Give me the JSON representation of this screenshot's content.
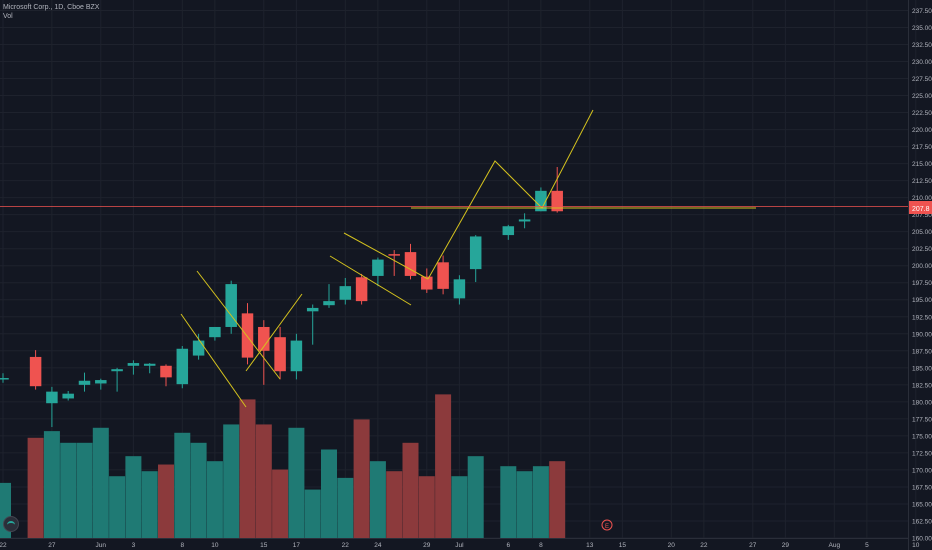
{
  "legend": {
    "title": "Microsoft Corp., 1D, Cboe BZX",
    "vol_label": "Vol"
  },
  "colors": {
    "up": "#26a69a",
    "down": "#ef5350",
    "vol_up": "#1f7a74",
    "vol_down": "#8c3a3c",
    "grid": "#1e222d",
    "drawing": "#d4c21e",
    "price_line": "#ef5350",
    "bg": "#131722"
  },
  "icons": {
    "logo": "tradingview-logo-icon",
    "event": "earnings-marker-icon"
  },
  "event_marker": {
    "label": "E"
  },
  "chart_data": {
    "type": "candlestick",
    "title": "Microsoft Corp., 1D, Cboe BZX",
    "current_price": 207.8,
    "price_label": "207.8",
    "y_ticks": [
      "237.50",
      "235.00",
      "232.50",
      "230.00",
      "227.50",
      "225.00",
      "222.50",
      "220.00",
      "217.50",
      "215.00",
      "212.50",
      "210.00",
      "207.50",
      "205.00",
      "202.50",
      "200.00",
      "197.50",
      "195.00",
      "192.50",
      "190.00",
      "187.50",
      "185.00",
      "182.50",
      "180.00",
      "177.50",
      "175.00",
      "172.50",
      "170.00",
      "167.50",
      "165.00",
      "162.50",
      "160.00"
    ],
    "y_tick_values": [
      237.5,
      235,
      232.5,
      230,
      227.5,
      225,
      222.5,
      220,
      217.5,
      215,
      212.5,
      210,
      207.5,
      205,
      202.5,
      200,
      197.5,
      195,
      192.5,
      190,
      187.5,
      185,
      182.5,
      180,
      177.5,
      175,
      172.5,
      170,
      167.5,
      165,
      162.5,
      160
    ],
    "ylim": [
      160,
      238.3
    ],
    "x_ticks": [
      {
        "label": "22",
        "date": "2020-05-22"
      },
      {
        "label": "27",
        "date": "2020-05-27"
      },
      {
        "label": "Jun",
        "date": "2020-06-01"
      },
      {
        "label": "3",
        "date": "2020-06-03"
      },
      {
        "label": "8",
        "date": "2020-06-08"
      },
      {
        "label": "10",
        "date": "2020-06-10"
      },
      {
        "label": "15",
        "date": "2020-06-15"
      },
      {
        "label": "17",
        "date": "2020-06-17"
      },
      {
        "label": "22",
        "date": "2020-06-22"
      },
      {
        "label": "24",
        "date": "2020-06-24"
      },
      {
        "label": "29",
        "date": "2020-06-29"
      },
      {
        "label": "Jul",
        "date": "2020-07-01"
      },
      {
        "label": "6",
        "date": "2020-07-06"
      },
      {
        "label": "8",
        "date": "2020-07-08"
      },
      {
        "label": "13",
        "date": "2020-07-13"
      },
      {
        "label": "15",
        "date": "2020-07-15"
      },
      {
        "label": "20",
        "date": "2020-07-20"
      },
      {
        "label": "22",
        "date": "2020-07-22"
      },
      {
        "label": "27",
        "date": "2020-07-27"
      },
      {
        "label": "29",
        "date": "2020-07-29"
      },
      {
        "label": "Aug",
        "date": "2020-08-03"
      },
      {
        "label": "5",
        "date": "2020-08-05"
      },
      {
        "label": "10",
        "date": "2020-08-10"
      }
    ],
    "candles": [
      {
        "date": "2020-05-22",
        "open": 183.5,
        "high": 184.2,
        "low": 182.8,
        "close": 183.5,
        "vol": 0.33
      },
      {
        "date": "2020-05-26",
        "open": 186.6,
        "high": 187.6,
        "low": 181.8,
        "close": 182.3,
        "vol": 0.6
      },
      {
        "date": "2020-05-27",
        "open": 179.8,
        "high": 182.2,
        "low": 176.3,
        "close": 181.5,
        "vol": 0.64
      },
      {
        "date": "2020-05-28",
        "open": 180.5,
        "high": 181.6,
        "low": 180.2,
        "close": 181.2,
        "vol": 0.57
      },
      {
        "date": "2020-05-29",
        "open": 182.5,
        "high": 184.3,
        "low": 181.5,
        "close": 183.1,
        "vol": 0.57
      },
      {
        "date": "2020-06-01",
        "open": 182.7,
        "high": 183.4,
        "low": 181.8,
        "close": 183.2,
        "vol": 0.66
      },
      {
        "date": "2020-06-02",
        "open": 184.5,
        "high": 185.0,
        "low": 181.5,
        "close": 184.8,
        "vol": 0.37
      },
      {
        "date": "2020-06-03",
        "open": 185.3,
        "high": 186.1,
        "low": 184.0,
        "close": 185.7,
        "vol": 0.49
      },
      {
        "date": "2020-06-04",
        "open": 185.3,
        "high": 185.7,
        "low": 184.2,
        "close": 185.6,
        "vol": 0.4
      },
      {
        "date": "2020-06-05",
        "open": 185.3,
        "high": 185.5,
        "low": 182.3,
        "close": 183.6,
        "vol": 0.44
      },
      {
        "date": "2020-06-08",
        "open": 182.6,
        "high": 188.2,
        "low": 182.0,
        "close": 187.8,
        "vol": 0.63
      },
      {
        "date": "2020-06-09",
        "open": 186.8,
        "high": 190.0,
        "low": 186.2,
        "close": 189.0,
        "vol": 0.57
      },
      {
        "date": "2020-06-10",
        "open": 189.5,
        "high": 191.0,
        "low": 189.0,
        "close": 191.0,
        "vol": 0.46
      },
      {
        "date": "2020-06-11",
        "open": 191.0,
        "high": 197.8,
        "low": 190.0,
        "close": 197.3,
        "vol": 0.68
      },
      {
        "date": "2020-06-12",
        "open": 193.0,
        "high": 194.5,
        "low": 185.5,
        "close": 186.5,
        "vol": 0.83
      },
      {
        "date": "2020-06-15",
        "open": 191.0,
        "high": 192.0,
        "low": 182.5,
        "close": 187.5,
        "vol": 0.68
      },
      {
        "date": "2020-06-16",
        "open": 189.5,
        "high": 191.0,
        "low": 183.3,
        "close": 184.5,
        "vol": 0.41
      },
      {
        "date": "2020-06-17",
        "open": 184.5,
        "high": 190.0,
        "low": 183.3,
        "close": 189.0,
        "vol": 0.66
      },
      {
        "date": "2020-06-18",
        "open": 193.3,
        "high": 194.3,
        "low": 188.4,
        "close": 193.8,
        "vol": 0.29
      },
      {
        "date": "2020-06-19",
        "open": 194.2,
        "high": 197.3,
        "low": 193.8,
        "close": 194.8,
        "vol": 0.53
      },
      {
        "date": "2020-06-22",
        "open": 195.0,
        "high": 198.2,
        "low": 194.3,
        "close": 197.0,
        "vol": 0.36
      },
      {
        "date": "2020-06-23",
        "open": 198.3,
        "high": 198.8,
        "low": 194.3,
        "close": 194.8,
        "vol": 0.71
      },
      {
        "date": "2020-06-24",
        "open": 198.5,
        "high": 201.2,
        "low": 197.0,
        "close": 200.9,
        "vol": 0.46
      },
      {
        "date": "2020-06-25",
        "open": 201.7,
        "high": 202.3,
        "low": 198.5,
        "close": 201.6,
        "vol": 0.4
      },
      {
        "date": "2020-06-26",
        "open": 202.0,
        "high": 203.2,
        "low": 198.0,
        "close": 198.5,
        "vol": 0.57
      },
      {
        "date": "2020-06-29",
        "open": 198.4,
        "high": 199.6,
        "low": 196.0,
        "close": 196.5,
        "vol": 0.37
      },
      {
        "date": "2020-06-30",
        "open": 200.5,
        "high": 201.5,
        "low": 195.8,
        "close": 196.6,
        "vol": 0.86
      },
      {
        "date": "2020-07-01",
        "open": 195.2,
        "high": 198.6,
        "low": 194.3,
        "close": 198.0,
        "vol": 0.37
      },
      {
        "date": "2020-07-02",
        "open": 199.5,
        "high": 204.5,
        "low": 197.6,
        "close": 204.3,
        "vol": 0.49
      },
      {
        "date": "2020-07-06",
        "open": 204.5,
        "high": 206.0,
        "low": 203.8,
        "close": 205.8,
        "vol": 0.43
      },
      {
        "date": "2020-07-07",
        "open": 206.5,
        "high": 207.7,
        "low": 205.5,
        "close": 206.8,
        "vol": 0.4
      },
      {
        "date": "2020-07-08",
        "open": 208.0,
        "high": 211.5,
        "low": 208.0,
        "close": 211.0,
        "vol": 0.43
      },
      {
        "date": "2020-07-09",
        "open": 211.0,
        "high": 214.5,
        "low": 207.8,
        "close": 208.0,
        "vol": 0.46
      }
    ]
  }
}
